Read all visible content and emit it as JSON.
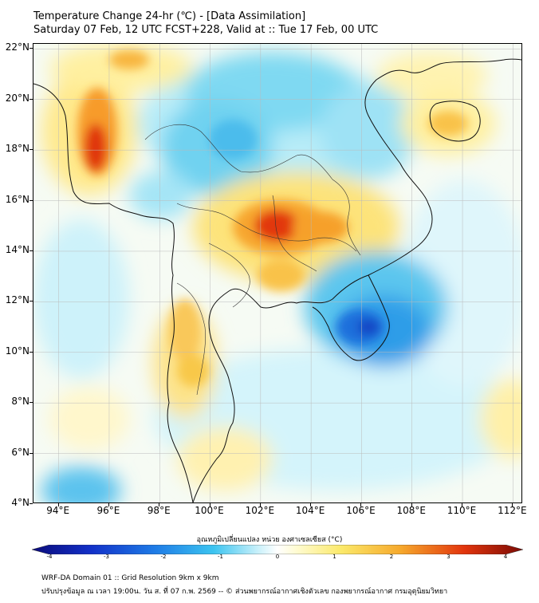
{
  "header": {
    "title_line1": "Temperature Change 24-hr (℃) - [Data Assimilation]",
    "title_line2": "Saturday 07 Feb, 12 UTC FCST+228, Valid at :: Tue 17 Feb, 00 UTC"
  },
  "map": {
    "lat_labels": [
      "22°N",
      "20°N",
      "18°N",
      "16°N",
      "14°N",
      "12°N",
      "10°N",
      "8°N",
      "6°N",
      "4°N"
    ],
    "lon_labels": [
      "94°E",
      "96°E",
      "98°E",
      "100°E",
      "102°E",
      "104°E",
      "106°E",
      "108°E",
      "110°E",
      "112°E"
    ],
    "lat_range": [
      4,
      22.2
    ],
    "lon_range": [
      93,
      112.4
    ],
    "warm_color": "#d81e05",
    "cool_color": "#1560d8",
    "neutral_color": "#fdfdf4"
  },
  "colorbar": {
    "label": "อุณหภูมิเปลี่ยนแปลง หน่วย องศาเซลเซียส (°C)",
    "ticks": [
      "-4",
      "-3",
      "-2",
      "-1",
      "0",
      "1",
      "2",
      "3",
      "4"
    ],
    "range": [
      -4,
      4
    ]
  },
  "footer": {
    "line1": "WRF-DA Domain 01 :: Grid Resolution 9km x 9km",
    "line2": "ปรับปรุงข้อมูล ณ เวลา 19:00น. วัน ส. ที่ 07 ก.พ. 2569 -- © ส่วนพยากรณ์อากาศเชิงตัวเลข กองพยากรณ์อากาศ กรมอุตุนิยมวิทยา"
  }
}
